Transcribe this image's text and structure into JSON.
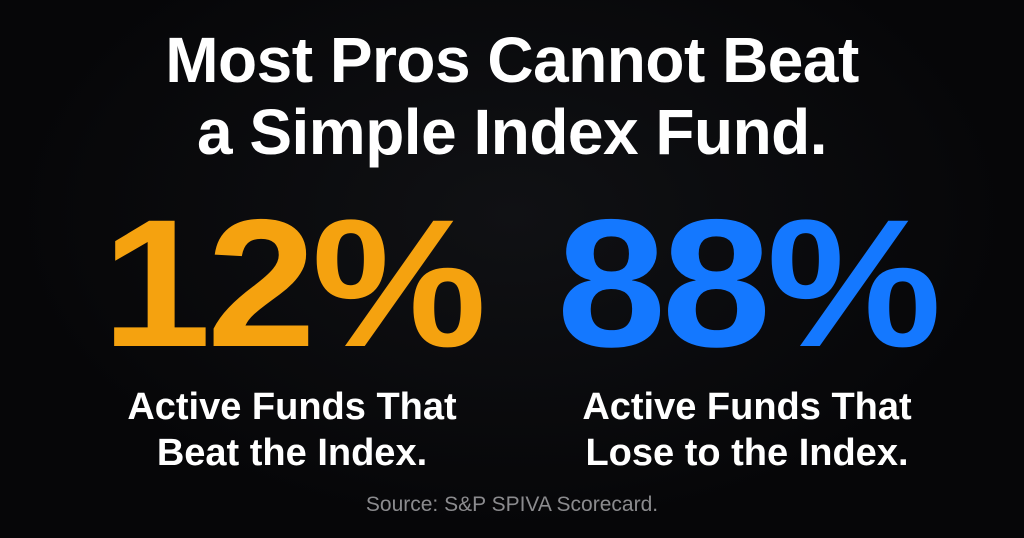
{
  "headline": {
    "line1": "Most Pros Cannot Beat",
    "line2": "a Simple Index Fund."
  },
  "stats": [
    {
      "value": "12%",
      "caption_line1": "Active Funds That",
      "caption_line2": "Beat the Index.",
      "color": "#f5a20f"
    },
    {
      "value": "88%",
      "caption_line1": "Active Funds That",
      "caption_line2": "Lose to the Index.",
      "color": "#1478ff"
    }
  ],
  "source": "Source: S&P SPIVA Scorecard.",
  "colors": {
    "background": "#060608",
    "text": "#ffffff",
    "muted": "#8b8b8e"
  }
}
